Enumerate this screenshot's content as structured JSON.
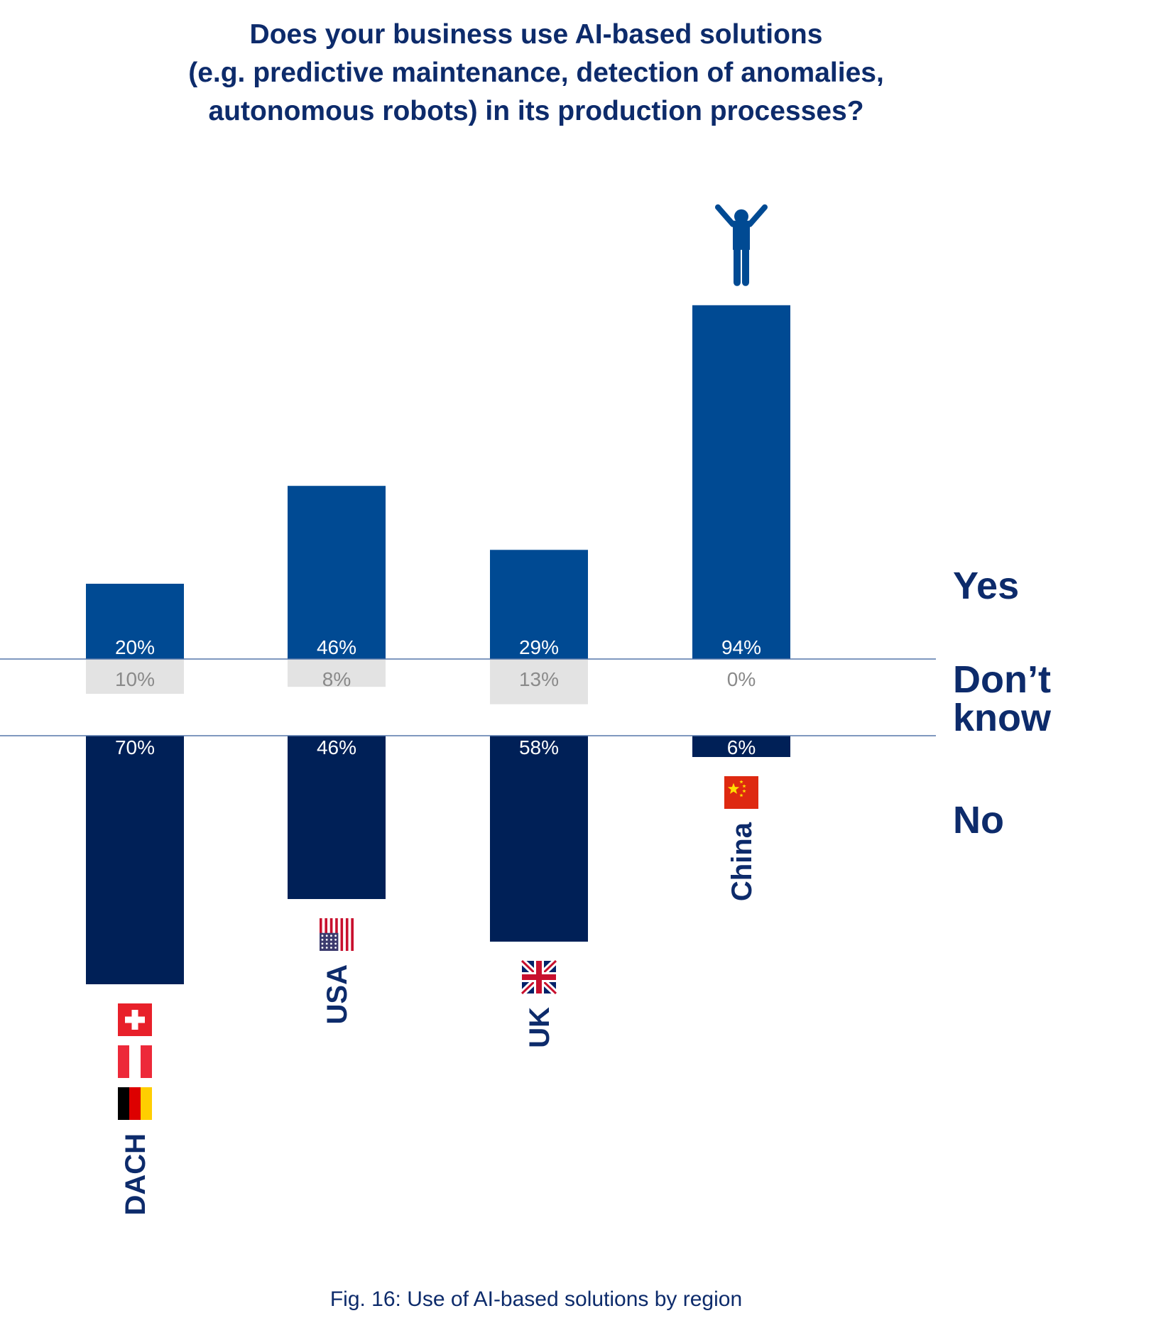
{
  "title_lines": [
    "Does your business use AI-based solutions",
    "(e.g. predictive maintenance, detection of anomalies,",
    "autonomous robots) in its production processes?"
  ],
  "caption": "Fig. 16: Use of AI-based solutions by region",
  "colors": {
    "yes": "#004a93",
    "dont_know": "#e3e3e3",
    "no": "#002057",
    "text_dark": "#0d2b6b",
    "separator": "#5577aa"
  },
  "chart_data": {
    "type": "bar",
    "categories": [
      "DACH",
      "USA",
      "UK",
      "China"
    ],
    "series": [
      {
        "name": "Yes",
        "values": [
          20,
          46,
          29,
          94
        ]
      },
      {
        "name": "Don’t know",
        "values": [
          10,
          8,
          13,
          0
        ]
      },
      {
        "name": "No",
        "values": [
          70,
          46,
          58,
          6
        ]
      }
    ],
    "value_labels": {
      "Yes": [
        "20%",
        "46%",
        "29%",
        "94%"
      ],
      "Don’t know": [
        "10%",
        "8%",
        "13%",
        "0%"
      ],
      "No": [
        "70%",
        "46%",
        "58%",
        "6%"
      ]
    },
    "flags": {
      "DACH": [
        "switzerland-flag-icon",
        "austria-flag-icon",
        "germany-flag-icon"
      ],
      "USA": [
        "usa-flag-icon"
      ],
      "UK": [
        "uk-flag-icon"
      ],
      "China": [
        "china-flag-icon"
      ]
    },
    "highlight_icon": {
      "category": "China",
      "icon": "person-arms-raised-icon"
    },
    "legend": [
      "Yes",
      "Don’t know",
      "No"
    ],
    "grid": false
  }
}
